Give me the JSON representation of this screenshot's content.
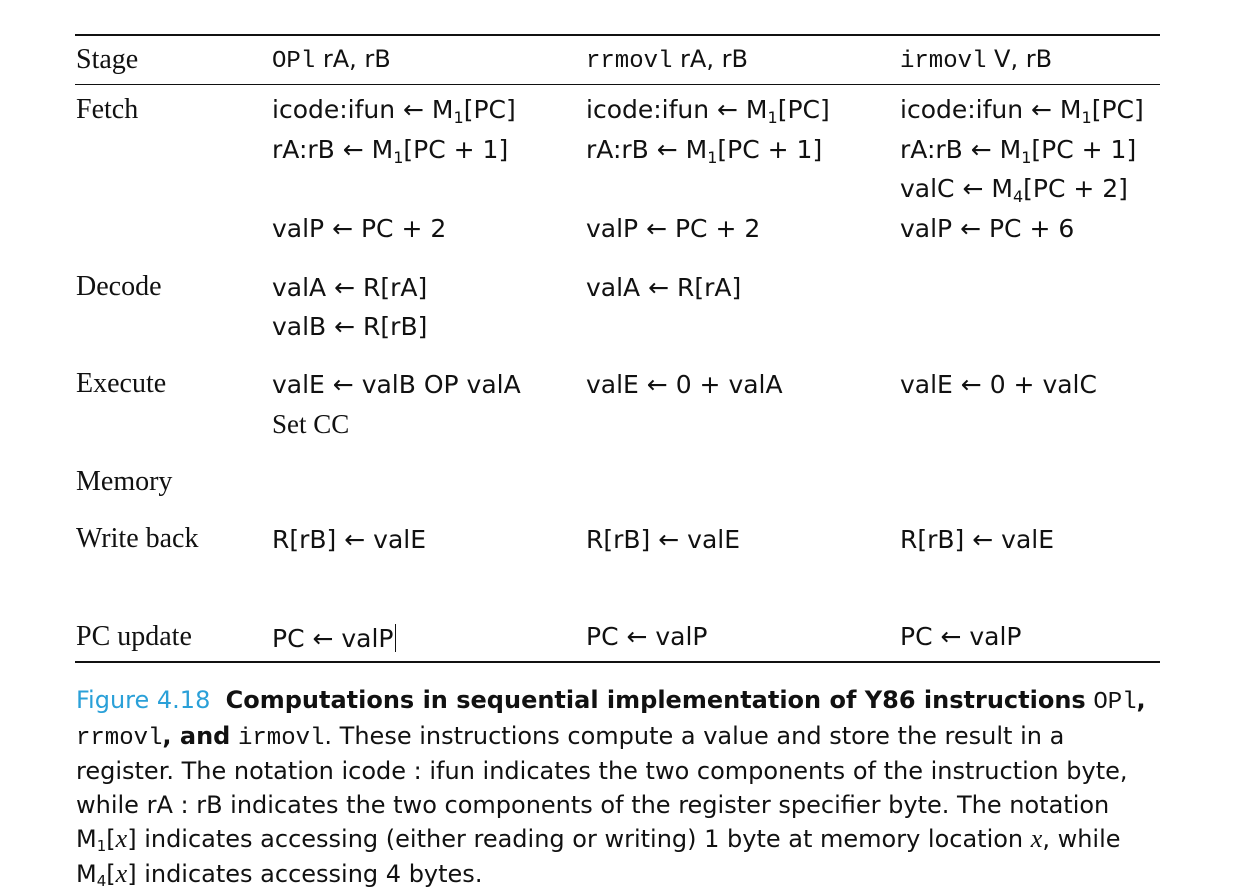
{
  "header": {
    "stage": "Stage",
    "col1_code": "OPl",
    "col1_ops": " rA, rB",
    "col2_code": "rrmovl",
    "col2_ops": " rA, rB",
    "col3_code": "irmovl",
    "col3_ops": " V, rB"
  },
  "stages": [
    "Fetch",
    "Decode",
    "Execute",
    "Memory",
    "Write back",
    "PC update"
  ],
  "cells": {
    "fetch_icode": "icode:ifun ← M",
    "fetch_icode_sub": "1",
    "fetch_icode_tail": "[PC]",
    "fetch_ra": "rA:rB ← M",
    "fetch_ra_sub": "1",
    "fetch_ra_tail": "[PC + 1]",
    "fetch_valc": "valC ← M",
    "fetch_valc_sub": "4",
    "fetch_valc_tail": "[PC + 2]",
    "valp_2": "valP ← PC + 2",
    "valp_6": "valP ← PC + 6",
    "decode_vala": "valA ← R[rA]",
    "decode_valb": "valB ← R[rB]",
    "exec_op": "valE ← valB OP valA",
    "exec_setcc": "Set CC",
    "exec_rrmovl": "valE ← 0 + valA",
    "exec_irmovl": "valE ← 0 + valC",
    "writeback": "R[rB] ← valE",
    "pc_update": "PC ← valP"
  },
  "caption": {
    "label": "Figure 4.18",
    "title_a": "Computations in sequential implementation of Y86 instructions",
    "code_opl": "OPl",
    "comma": ",",
    "code_rrmovl": "rrmovl",
    "title_and": ", and",
    "code_irmovl": "irmovl",
    "body_1": ". These instructions compute a value and store the result in a register. The notation icode : ifun indicates the two components of the instruction byte, while rA : rB indicates the two components of the register specifier byte. The notation ",
    "m": "M",
    "sub1": "1",
    "bracket_open": "[",
    "x": "x",
    "bracket_close": "]",
    "body_2": " indicates accessing (either reading or writing) 1 byte at memory location ",
    "body_3": ", while ",
    "sub4": "4",
    "body_4": " indicates accessing 4 bytes."
  }
}
